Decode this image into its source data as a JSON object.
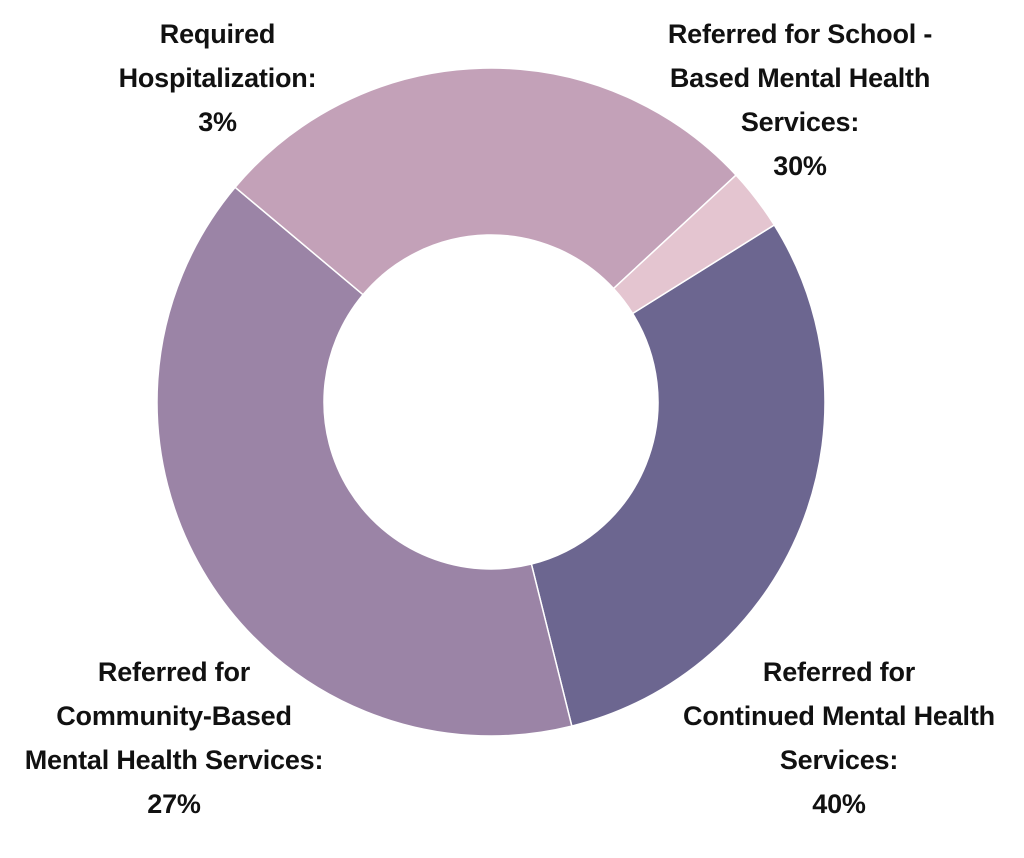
{
  "chart_data": {
    "type": "pie",
    "style": "donut",
    "title": "",
    "start_angle_deg": -32,
    "slices": [
      {
        "label_lines": [
          "Referred for School -",
          "Based Mental Health",
          "Services:"
        ],
        "value_label": "30%",
        "value": 30,
        "color": "#6c6690"
      },
      {
        "label_lines": [
          "Referred for",
          "Continued Mental Health",
          "Services:"
        ],
        "value_label": "40%",
        "value": 40,
        "color": "#9b84a6"
      },
      {
        "label_lines": [
          "Referred for",
          "Community-Based",
          "Mental Health Services:"
        ],
        "value_label": "27%",
        "value": 27,
        "color": "#c3a1b8"
      },
      {
        "label_lines": [
          "Required",
          "Hospitalization:"
        ],
        "value_label": "3%",
        "value": 3,
        "color": "#e4c5d0"
      }
    ]
  }
}
